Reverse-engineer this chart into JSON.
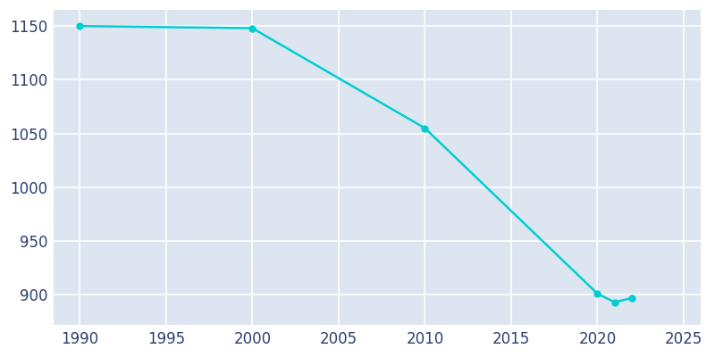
{
  "years": [
    1990,
    2000,
    2010,
    2020,
    2021,
    2022
  ],
  "population": [
    1150,
    1148,
    1055,
    901,
    893,
    897
  ],
  "line_color": "#00CED1",
  "marker_color": "#00CED1",
  "fig_bg_color": "#ffffff",
  "plot_bg_color": "#dde6f0",
  "grid_color": "#ffffff",
  "tick_color": "#2E3F6E",
  "xlim": [
    1988.5,
    2026
  ],
  "ylim": [
    872,
    1165
  ],
  "xticks": [
    1990,
    1995,
    2000,
    2005,
    2010,
    2015,
    2020,
    2025
  ],
  "yticks": [
    900,
    950,
    1000,
    1050,
    1100,
    1150
  ],
  "linewidth": 1.8,
  "markersize": 5,
  "tick_labelsize": 12
}
